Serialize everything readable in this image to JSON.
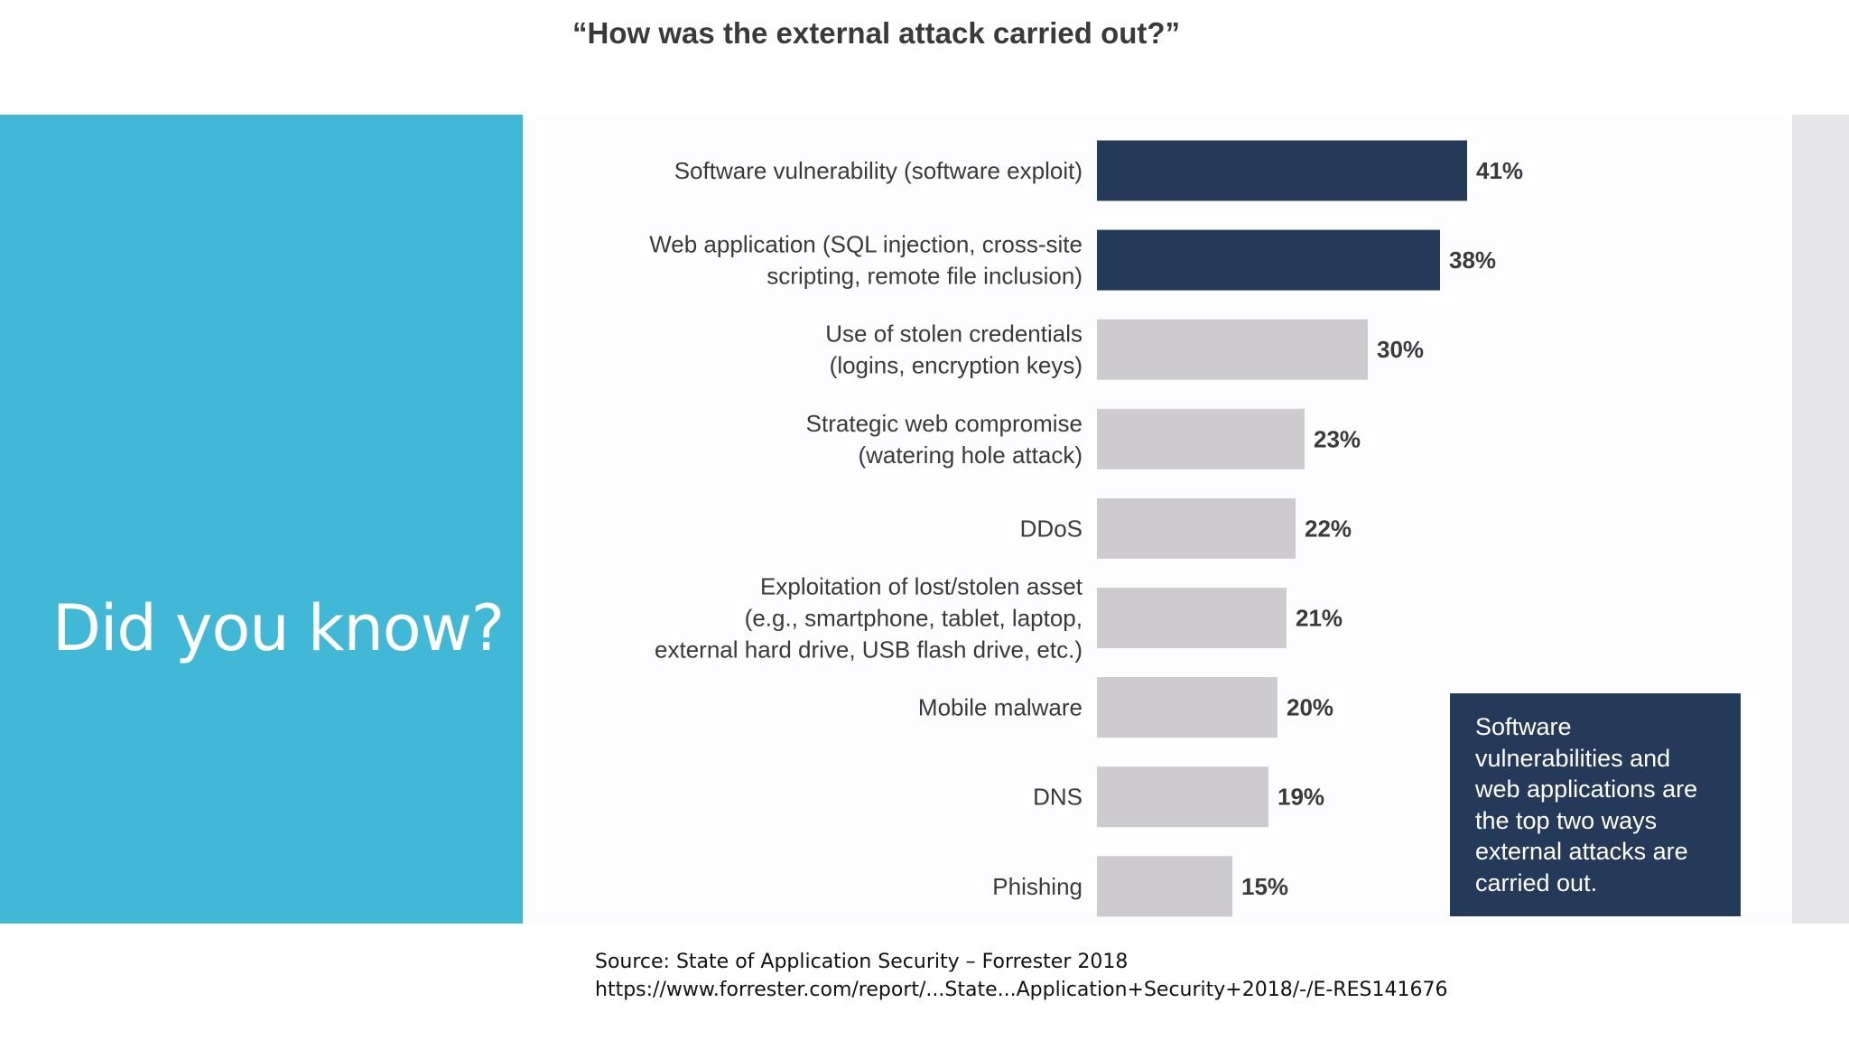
{
  "slide": {
    "heading": "Did you know?",
    "source_line1": "Source: State of Application Security – Forrester 2018",
    "source_line2": "https://www.forrester.com/report/...State...Application+Security+2018/-/E-RES141676"
  },
  "colors": {
    "accent_panel": "#41b9d6",
    "highlight_bar": "#243a58",
    "other_bar": "#cdcbcd",
    "callout_bg": "#243a58"
  },
  "callout": {
    "text": "Software vulnerabilities and web applications are the top two ways external attacks are carried out."
  },
  "chart_data": {
    "type": "bar",
    "orientation": "horizontal",
    "title": "“How was the external attack carried out?”",
    "categories": [
      [
        "Software vulnerability (software exploit)"
      ],
      [
        "Web application (SQL injection, cross-site",
        "scripting, remote file inclusion)"
      ],
      [
        "Use of stolen credentials",
        "(logins, encryption keys)"
      ],
      [
        "Strategic web compromise",
        "(watering hole attack)"
      ],
      [
        "DDoS"
      ],
      [
        "Exploitation of lost/stolen asset",
        "(e.g., smartphone, tablet, laptop,",
        "external hard drive, USB flash drive, etc.)"
      ],
      [
        "Mobile malware"
      ],
      [
        "DNS"
      ],
      [
        "Phishing"
      ]
    ],
    "values": [
      41,
      38,
      30,
      23,
      22,
      21,
      20,
      19,
      15
    ],
    "value_labels": [
      "41%",
      "38%",
      "30%",
      "23%",
      "22%",
      "21%",
      "20%",
      "19%",
      "15%"
    ],
    "highlighted": [
      true,
      true,
      false,
      false,
      false,
      false,
      false,
      false,
      false
    ],
    "unit": "%",
    "grid": false,
    "legend": false
  }
}
